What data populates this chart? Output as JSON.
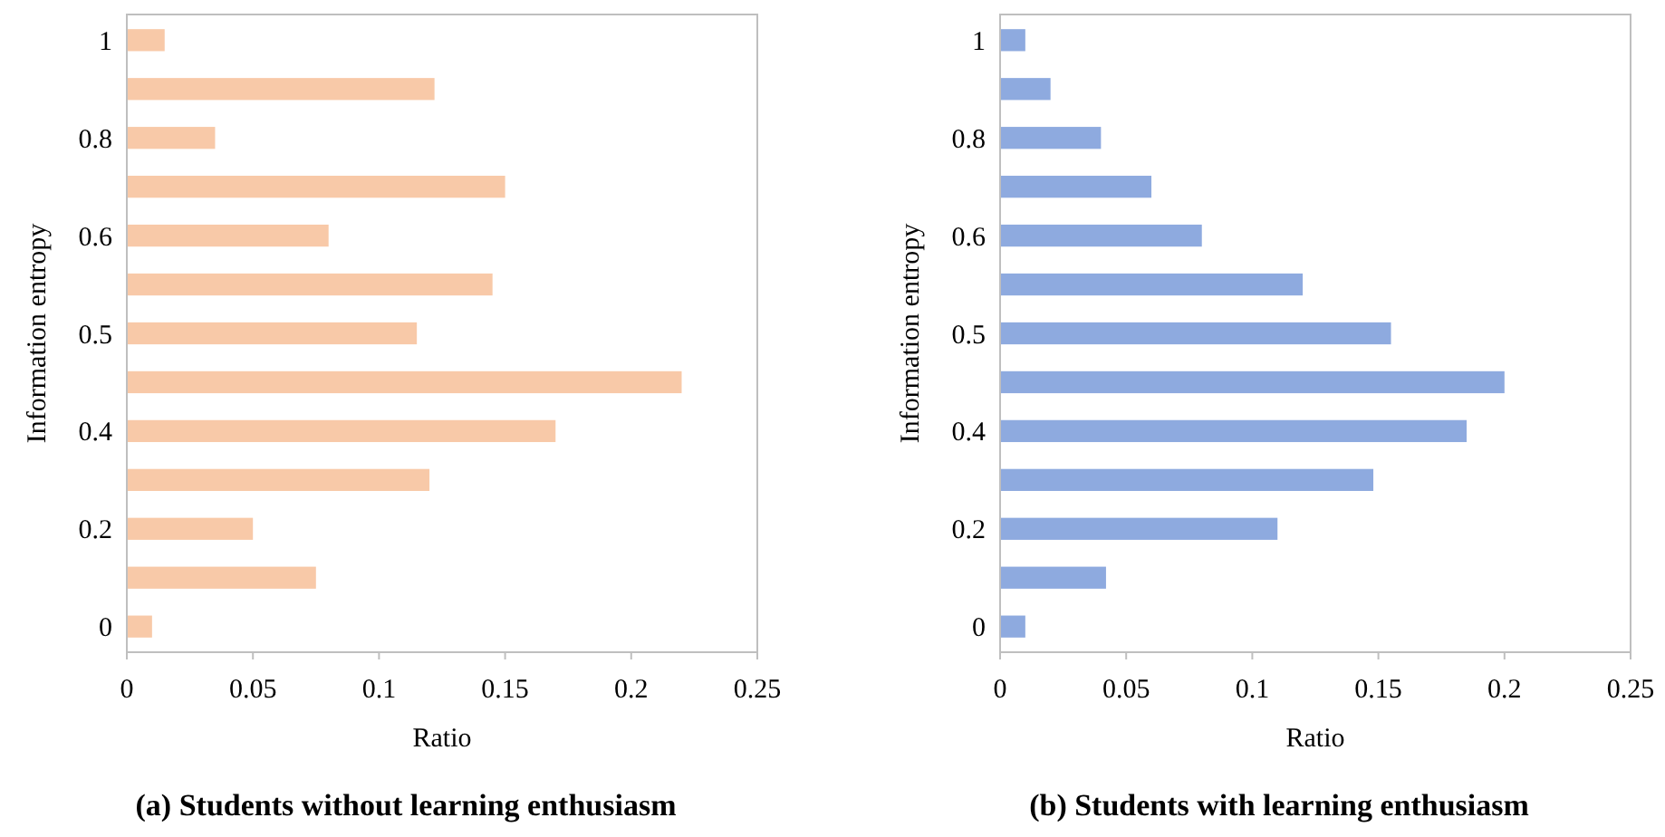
{
  "chart_data": [
    {
      "type": "bar",
      "orientation": "horizontal",
      "title": "(a) Students without learning enthusiasm",
      "xlabel": "Ratio",
      "ylabel": "Information entropy",
      "categories": [
        "1",
        null,
        "0.8",
        null,
        "0.6",
        null,
        "0.5",
        null,
        "0.4",
        null,
        "0.2",
        null,
        "0"
      ],
      "series": [
        {
          "color": "#f8c9a8",
          "values": [
            0.015,
            0.122,
            0.035,
            0.15,
            0.08,
            0.145,
            0.115,
            0.22,
            0.17,
            0.12,
            0.05,
            0.075,
            0.01
          ]
        }
      ],
      "xlim": [
        0,
        0.25
      ],
      "xticks": [
        0,
        0.05,
        0.1,
        0.15,
        0.2,
        0.25
      ],
      "grid": false
    },
    {
      "type": "bar",
      "orientation": "horizontal",
      "title": "(b) Students with learning enthusiasm",
      "xlabel": "Ratio",
      "ylabel": "Information entropy",
      "categories": [
        "1",
        null,
        "0.8",
        null,
        "0.6",
        null,
        "0.5",
        null,
        "0.4",
        null,
        "0.2",
        null,
        "0"
      ],
      "series": [
        {
          "color": "#8eaadf",
          "values": [
            0.01,
            0.02,
            0.04,
            0.06,
            0.08,
            0.12,
            0.155,
            0.2,
            0.185,
            0.148,
            0.11,
            0.042,
            0.01
          ]
        }
      ],
      "xlim": [
        0,
        0.25
      ],
      "xticks": [
        0,
        0.05,
        0.1,
        0.15,
        0.2,
        0.25
      ],
      "grid": false
    }
  ]
}
